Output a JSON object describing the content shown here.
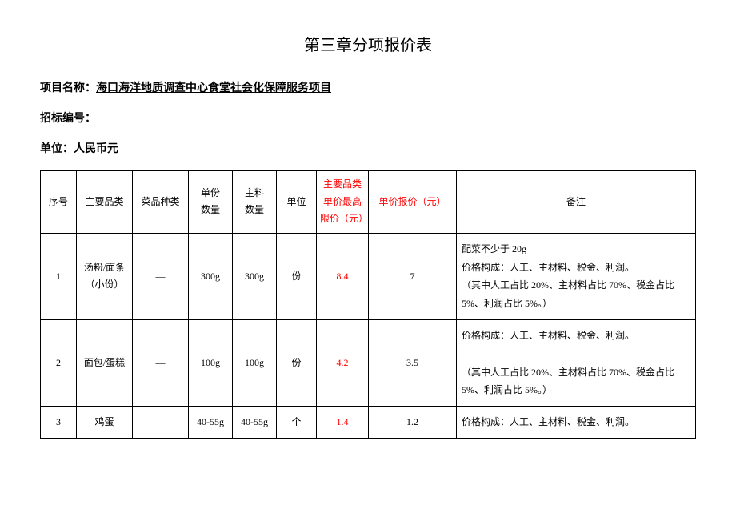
{
  "title": "第三章分项报价表",
  "project_label": "项目名称：",
  "project_name": "海口海洋地质调查中心食堂社会化保障服务项目",
  "bid_no_label": "招标编号：",
  "unit_label": "单位：人民币元",
  "headers": {
    "seq": "序号",
    "category": "主要品类",
    "dish_type": "菜品种类",
    "qty_top": "单份",
    "qty_bottom": "数量",
    "main_top": "主料",
    "main_bottom": "数量",
    "unit": "单位",
    "limit": "主要品类单价最高限价（元）",
    "quote": "单价报价（元）",
    "remark": "备注"
  },
  "rows": [
    {
      "seq": "1",
      "category": "汤粉/面条（小份）",
      "dish_type": "—",
      "qty": "300g",
      "main_qty": "300g",
      "unit": "份",
      "limit": "8.4",
      "quote": "7",
      "remark": "配菜不少于 20g\n价格构成：人工、主材料、税金、利润。\n（其中人工占比 20%、主材料占比 70%、税金占比 5%、利润占比 5%。）"
    },
    {
      "seq": "2",
      "category": "面包/蛋糕",
      "dish_type": "—",
      "qty": "100g",
      "main_qty": "100g",
      "unit": "份",
      "limit": "4.2",
      "quote": "3.5",
      "remark": "价格构成：人工、主材料、税金、利润。\n\n（其中人工占比 20%、主材料占比 70%、税金占比 5%、利润占比 5%。）"
    },
    {
      "seq": "3",
      "category": "鸡蛋",
      "dish_type": "——",
      "qty": "40-55g",
      "main_qty": "40-55g",
      "unit": "个",
      "limit": "1.4",
      "quote": "1.2",
      "remark": "价格构成：人工、主材料、税金、利润。"
    }
  ]
}
